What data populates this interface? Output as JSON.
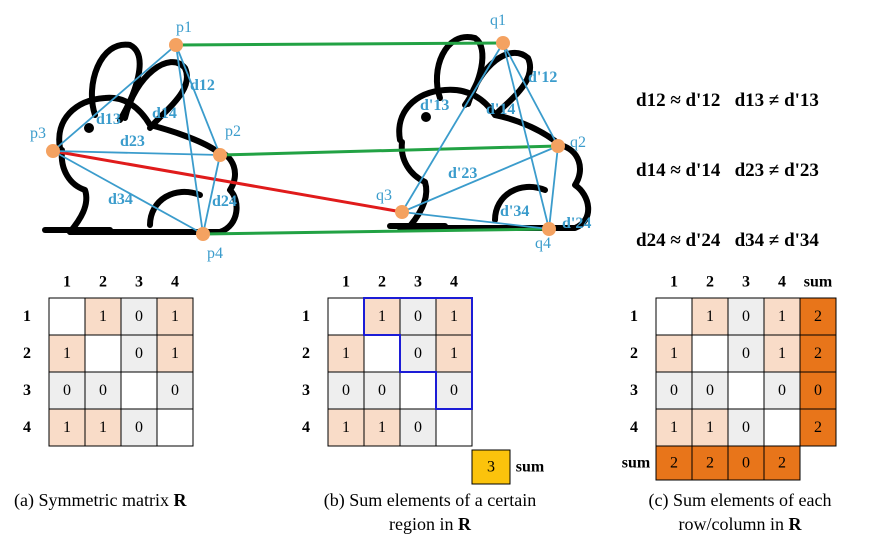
{
  "rabbit_left": {
    "points": [
      "p1",
      "p2",
      "p3",
      "p4"
    ],
    "edges": [
      "d12",
      "d13",
      "d14",
      "d23",
      "d24",
      "d34"
    ]
  },
  "rabbit_right": {
    "points": [
      "q1",
      "q2",
      "q3",
      "q4"
    ],
    "edges": [
      "d'12",
      "d'13",
      "d'14",
      "d'23",
      "d'24",
      "d'34"
    ]
  },
  "relations": [
    {
      "left": "d12 ≈ d'12",
      "right": "d13 ≠ d'13"
    },
    {
      "left": "d14 ≈ d'14",
      "right": "d23 ≠ d'23"
    },
    {
      "left": "d24 ≈ d'24",
      "right": "d34 ≠ d'34"
    }
  ],
  "matrix": {
    "col_headers": [
      "1",
      "2",
      "3",
      "4"
    ],
    "row_headers": [
      "1",
      "2",
      "3",
      "4"
    ],
    "values": [
      [
        "",
        "1",
        "0",
        "1"
      ],
      [
        "1",
        "",
        "0",
        "1"
      ],
      [
        "0",
        "0",
        "",
        "0"
      ],
      [
        "1",
        "1",
        "0",
        ""
      ]
    ]
  },
  "panel_b": {
    "sum_value": "3",
    "sum_label": "sum"
  },
  "panel_c": {
    "sum_label": "sum",
    "row_sums": [
      "2",
      "2",
      "0",
      "2"
    ],
    "col_sums": [
      "2",
      "2",
      "0",
      "2"
    ]
  },
  "captions": {
    "a": {
      "text": "(a) Symmetric matrix ",
      "bold": "R"
    },
    "b": {
      "line1": "(b) Sum elements of a certain",
      "line2": "region in ",
      "bold": "R"
    },
    "c": {
      "line1": "(c) Sum elements of each",
      "line2": "row/column in ",
      "bold": "R"
    }
  },
  "colors": {
    "one_cell": "#f9dcc8",
    "zero_cell": "#eeeeee",
    "sum_cell": "#e8751a",
    "sum_highlight": "#fbc30c",
    "region_border": "#1c1cd6",
    "edge_blue": "#3b9ccc",
    "match_green": "#22a244",
    "mismatch_red": "#e01b1b",
    "point_orange": "#f4a261"
  }
}
